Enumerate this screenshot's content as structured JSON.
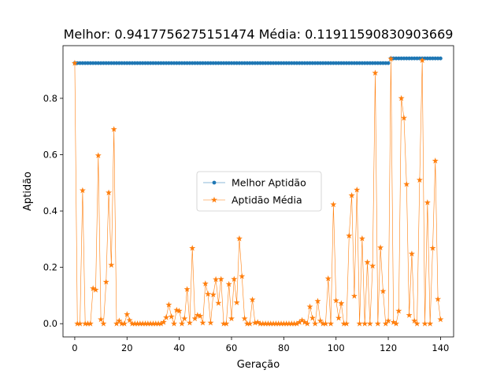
{
  "chart_data": {
    "type": "line",
    "title": "Melhor: 0.9417756275151474 Média: 0.11911590830903669",
    "xlabel": "Geração",
    "ylabel": "Aptidão",
    "xlim": [
      -4.5,
      145
    ],
    "ylim": [
      -0.047,
      0.987
    ],
    "xticks": [
      0,
      20,
      40,
      60,
      80,
      100,
      120,
      140
    ],
    "yticks": [
      0.0,
      0.2,
      0.4,
      0.6,
      0.8
    ],
    "grid": false,
    "legend_position": "center",
    "series": [
      {
        "name": "Melhor Aptidão",
        "color": "#1f77b4",
        "marker": "circle",
        "x": [
          0,
          120,
          121,
          140
        ],
        "y": [
          0.925,
          0.925,
          0.9418,
          0.9418
        ]
      },
      {
        "name": "Aptidão Média",
        "color": "#ff7f0e",
        "marker": "star",
        "values": [
          0.925,
          0.0,
          0.0,
          0.473,
          0.0,
          0.0,
          0.0,
          0.125,
          0.12,
          0.597,
          0.015,
          0.0,
          0.148,
          0.465,
          0.208,
          0.69,
          0.0,
          0.01,
          0.0,
          0.0,
          0.033,
          0.012,
          0.0,
          0.0,
          0.0,
          0.0,
          0.0,
          0.0,
          0.0,
          0.0,
          0.0,
          0.0,
          0.0,
          0.0,
          0.005,
          0.022,
          0.067,
          0.025,
          0.0,
          0.048,
          0.045,
          0.0,
          0.018,
          0.122,
          0.003,
          0.268,
          0.018,
          0.03,
          0.027,
          0.003,
          0.142,
          0.105,
          0.003,
          0.103,
          0.157,
          0.073,
          0.158,
          0.0,
          0.0,
          0.14,
          0.018,
          0.158,
          0.075,
          0.302,
          0.168,
          0.018,
          0.0,
          0.0,
          0.085,
          0.003,
          0.005,
          0.0,
          0.0,
          0.0,
          0.0,
          0.0,
          0.0,
          0.0,
          0.0,
          0.0,
          0.0,
          0.0,
          0.0,
          0.0,
          0.0,
          0.0,
          0.005,
          0.012,
          0.005,
          0.0,
          0.06,
          0.02,
          0.0,
          0.08,
          0.01,
          0.0,
          0.0,
          0.16,
          0.0,
          0.423,
          0.082,
          0.02,
          0.072,
          0.0,
          0.0,
          0.312,
          0.455,
          0.098,
          0.475,
          0.0,
          0.302,
          0.0,
          0.218,
          0.0,
          0.205,
          0.89,
          0.0,
          0.27,
          0.115,
          0.0,
          0.01,
          0.94,
          0.005,
          0.0,
          0.045,
          0.8,
          0.73,
          0.495,
          0.03,
          0.248,
          0.01,
          0.0,
          0.51,
          0.935,
          0.0,
          0.43,
          0.0,
          0.268,
          0.578,
          0.087,
          0.015
        ]
      }
    ]
  }
}
